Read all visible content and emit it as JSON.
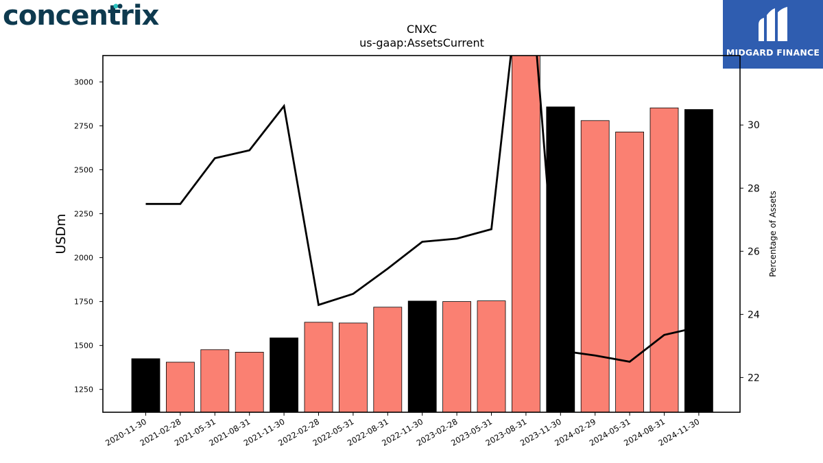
{
  "brand": {
    "left_logo": "concentrix",
    "right_logo": "MIDGARD FINANCE"
  },
  "colors": {
    "bar_highlight": "#000000",
    "bar_regular": "#fa8072",
    "line": "#000000",
    "right_logo_bg": "#2f5db0",
    "left_logo": "#0e3a4f",
    "logo_dot": "#2bc4c0"
  },
  "chart_data": {
    "type": "bar",
    "title": "CNXC",
    "subtitle": "us-gaap:AssetsCurrent",
    "ylabel": "USDm",
    "y2label": "Percentage of Assets",
    "categories": [
      "2020-11-30",
      "2021-02-28",
      "2021-05-31",
      "2021-08-31",
      "2021-11-30",
      "2022-02-28",
      "2022-05-31",
      "2022-08-31",
      "2022-11-30",
      "2023-02-28",
      "2023-05-31",
      "2023-08-31",
      "2023-11-30",
      "2024-02-29",
      "2024-05-31",
      "2024-08-31",
      "2024-11-30"
    ],
    "series": [
      {
        "type": "bar",
        "values": [
          1425,
          1405,
          1476,
          1462,
          1543,
          1632,
          1628,
          1718,
          1753,
          1750,
          1754,
          3190,
          2858,
          2780,
          2715,
          2852,
          2843
        ],
        "highlight": [
          true,
          false,
          false,
          false,
          true,
          false,
          false,
          false,
          true,
          false,
          false,
          false,
          true,
          false,
          false,
          false,
          true
        ]
      },
      {
        "type": "line",
        "axis": "right",
        "values": [
          27.5,
          27.5,
          28.95,
          29.2,
          30.6,
          24.3,
          24.65,
          25.45,
          26.3,
          26.4,
          26.7,
          36.5,
          22.85,
          22.7,
          22.5,
          23.35,
          23.6
        ]
      }
    ],
    "ylim": [
      1120,
      3150
    ],
    "y2lim": [
      20.9,
      32.2
    ],
    "yticks": [
      1250,
      1500,
      1750,
      2000,
      2250,
      2500,
      2750,
      3000
    ],
    "y2ticks": [
      22,
      24,
      26,
      28,
      30
    ],
    "grid": false
  }
}
